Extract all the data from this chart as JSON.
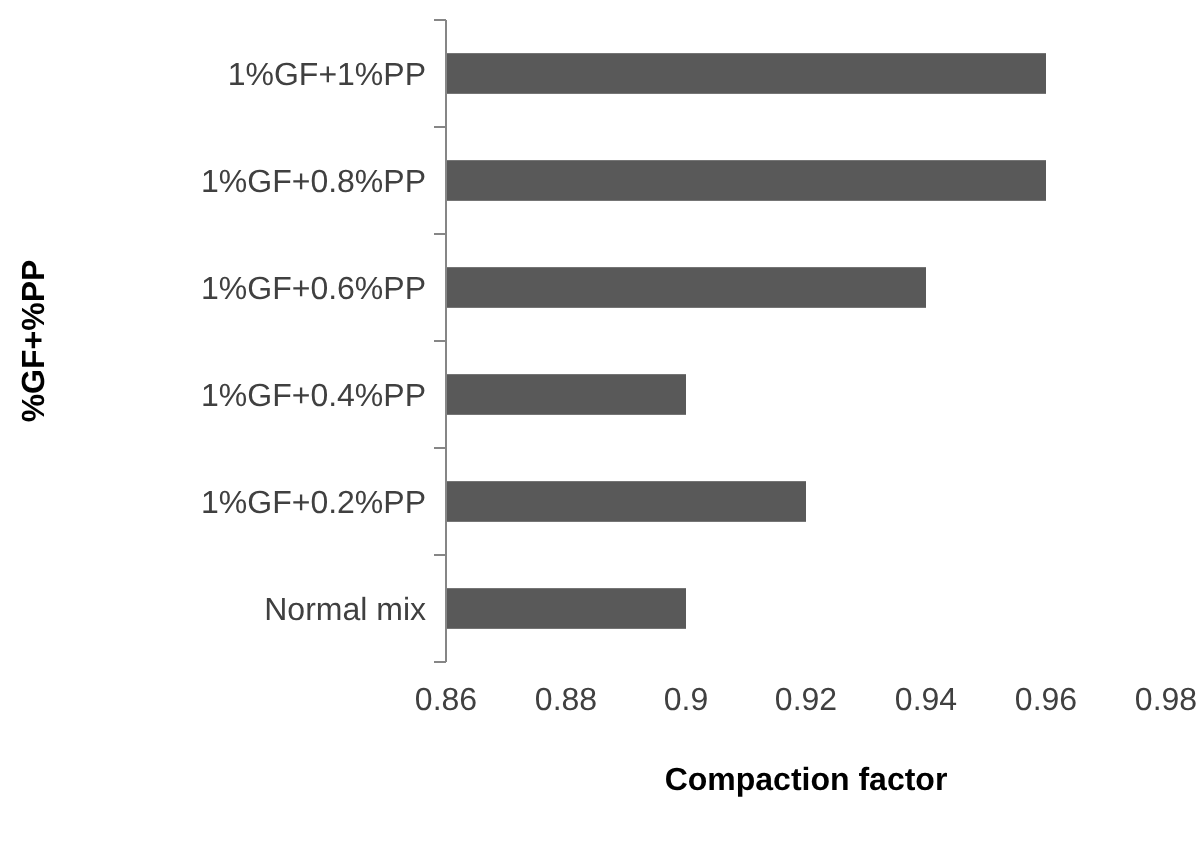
{
  "chart_data": {
    "type": "bar",
    "orientation": "horizontal",
    "xlabel": "Compaction factor",
    "ylabel": "%GF+%PP",
    "categories": [
      "1%GF+1%PP",
      "1%GF+0.8%PP",
      "1%GF+0.6%PP",
      "1%GF+0.4%PP",
      "1%GF+0.2%PP",
      "Normal mix"
    ],
    "values": [
      0.96,
      0.96,
      0.94,
      0.9,
      0.92,
      0.9
    ],
    "color": "#595959",
    "xlim": [
      0.86,
      0.98
    ],
    "xticks": [
      0.86,
      0.88,
      0.9,
      0.92,
      0.94,
      0.96,
      0.98
    ]
  }
}
